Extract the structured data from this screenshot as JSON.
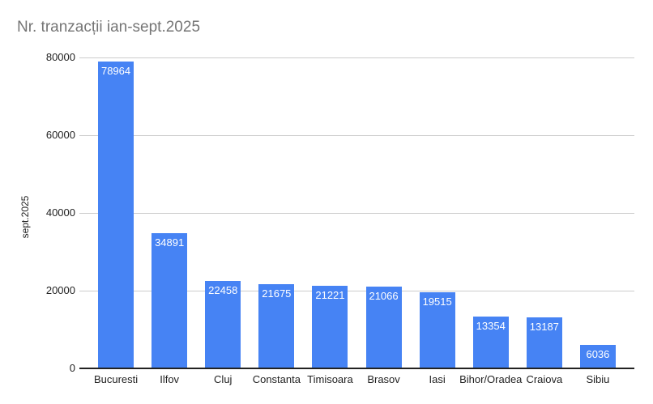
{
  "title": "Nr. tranzacții ian-sept.2025",
  "chart_data": {
    "type": "bar",
    "title": "Nr. tranzacții ian-sept.2025",
    "xlabel": "",
    "ylabel": "sept.2025",
    "categories": [
      "Bucuresti",
      "Ilfov",
      "Cluj",
      "Constanta",
      "Timisoara",
      "Brasov",
      "Iasi",
      "Bihor/Oradea",
      "Craiova",
      "Sibiu"
    ],
    "values": [
      78964,
      34891,
      22458,
      21675,
      21221,
      21066,
      19515,
      13354,
      13187,
      6036
    ],
    "ylim": [
      0,
      80000
    ],
    "yticks": [
      0,
      20000,
      40000,
      60000,
      80000
    ],
    "grid": true,
    "legend_position": "none",
    "bar_color": "#4683F4",
    "value_label_color": "#ffffff",
    "gridline_color": "#cccccc",
    "axis_line_color": "#222222",
    "title_color": "#757575",
    "tick_label_color": "#222222"
  }
}
